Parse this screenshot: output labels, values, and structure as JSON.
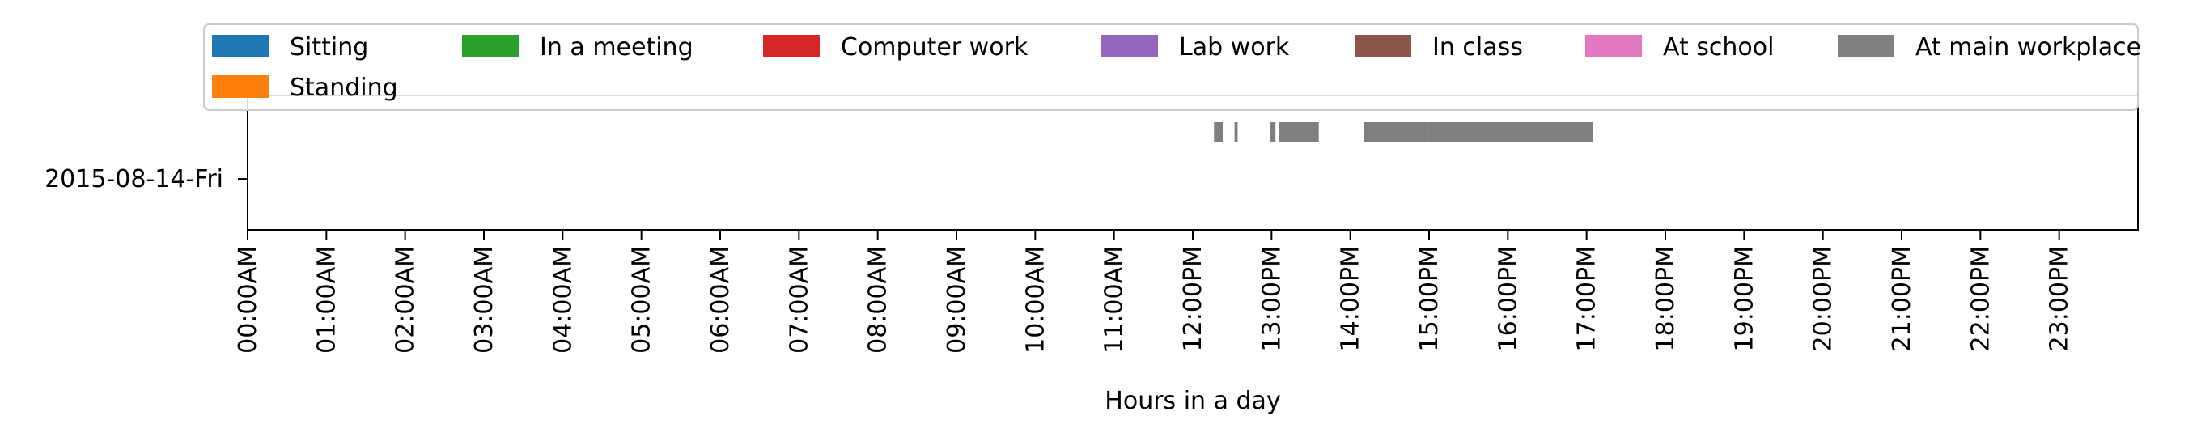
{
  "chart_data": {
    "type": "timeline",
    "xlabel": "Hours in a day",
    "ylabel": "",
    "xlim": [
      0,
      24
    ],
    "x_ticks": [
      {
        "value": 0,
        "label": "00:00AM"
      },
      {
        "value": 1,
        "label": "01:00AM"
      },
      {
        "value": 2,
        "label": "02:00AM"
      },
      {
        "value": 3,
        "label": "03:00AM"
      },
      {
        "value": 4,
        "label": "04:00AM"
      },
      {
        "value": 5,
        "label": "05:00AM"
      },
      {
        "value": 6,
        "label": "06:00AM"
      },
      {
        "value": 7,
        "label": "07:00AM"
      },
      {
        "value": 8,
        "label": "08:00AM"
      },
      {
        "value": 9,
        "label": "09:00AM"
      },
      {
        "value": 10,
        "label": "10:00AM"
      },
      {
        "value": 11,
        "label": "11:00AM"
      },
      {
        "value": 12,
        "label": "12:00PM"
      },
      {
        "value": 13,
        "label": "13:00PM"
      },
      {
        "value": 14,
        "label": "14:00PM"
      },
      {
        "value": 15,
        "label": "15:00PM"
      },
      {
        "value": 16,
        "label": "16:00PM"
      },
      {
        "value": 17,
        "label": "17:00PM"
      },
      {
        "value": 18,
        "label": "18:00PM"
      },
      {
        "value": 19,
        "label": "19:00PM"
      },
      {
        "value": 20,
        "label": "20:00PM"
      },
      {
        "value": 21,
        "label": "21:00PM"
      },
      {
        "value": 22,
        "label": "22:00PM"
      },
      {
        "value": 23,
        "label": "23:00PM"
      }
    ],
    "days": [
      "2015-08-14-Fri"
    ],
    "legend": {
      "placement": "top",
      "columns": 7,
      "entries": [
        {
          "label": "Sitting",
          "color": "#1f77b4"
        },
        {
          "label": "In a meeting",
          "color": "#2ca02c"
        },
        {
          "label": "Computer work",
          "color": "#d62728"
        },
        {
          "label": "Lab work",
          "color": "#9467bd"
        },
        {
          "label": "In class",
          "color": "#8c564b"
        },
        {
          "label": "At school",
          "color": "#e377c2"
        },
        {
          "label": "At main workplace",
          "color": "#7f7f7f"
        },
        {
          "label": "Standing",
          "color": "#ff7f0e"
        }
      ]
    },
    "series": [
      {
        "label": "At main workplace",
        "color": "#7f7f7f",
        "day": "2015-08-14-Fri",
        "intervals": [
          [
            12.27,
            12.38
          ],
          [
            12.53,
            12.57
          ],
          [
            12.98,
            13.05
          ],
          [
            13.1,
            13.6
          ],
          [
            14.17,
            14.98
          ],
          [
            14.98,
            15.73
          ],
          [
            15.73,
            17.08
          ]
        ]
      }
    ]
  }
}
